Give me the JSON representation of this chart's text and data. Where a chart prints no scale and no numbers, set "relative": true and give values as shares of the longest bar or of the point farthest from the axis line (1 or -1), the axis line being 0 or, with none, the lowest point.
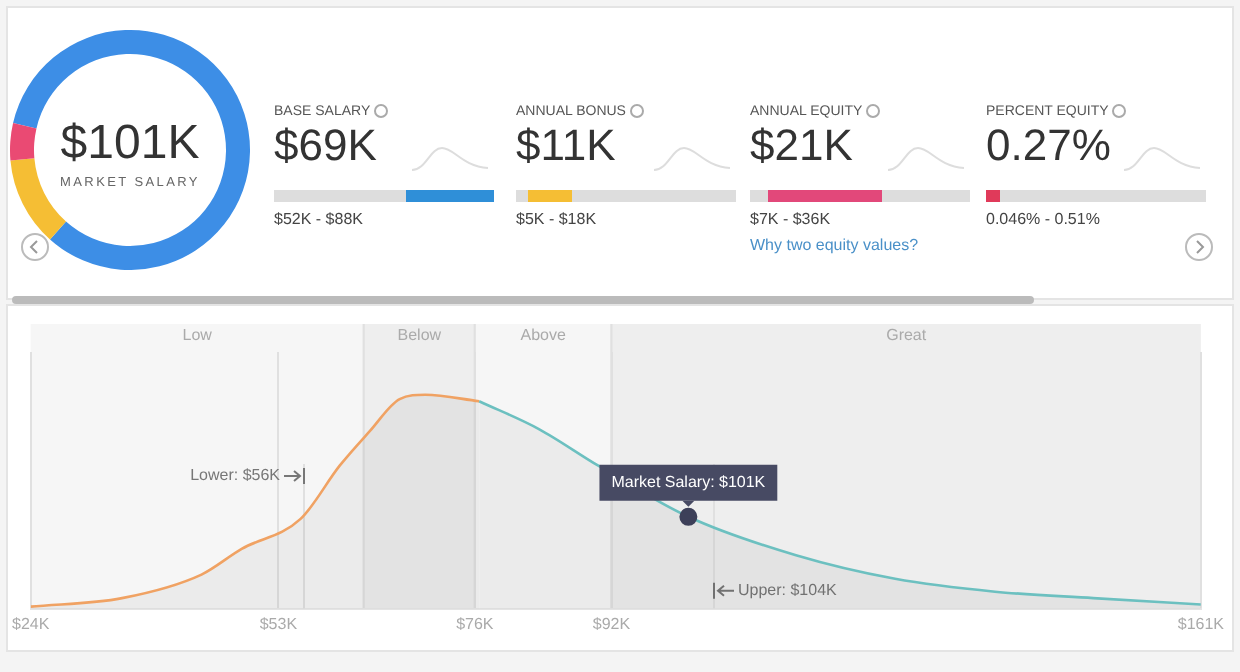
{
  "chart_data": [
    {
      "type": "donut",
      "categories": [
        null,
        null,
        null
      ],
      "values": [
        83,
        12,
        5
      ],
      "colors": [
        "#3d8ee6",
        "#f5be34",
        "#ea4a73"
      ],
      "annotations": [
        "$101K",
        "MARKET SALARY"
      ],
      "legend": false
    },
    {
      "type": "other",
      "title": "BASE SALARY",
      "annotations": [
        "$69K",
        "$52K - $88K"
      ],
      "color": "#2f8fd8"
    },
    {
      "type": "other",
      "title": "ANNUAL BONUS",
      "annotations": [
        "$11K",
        "$5K - $18K"
      ],
      "color": "#f5be34"
    },
    {
      "type": "other",
      "title": "ANNUAL EQUITY",
      "annotations": [
        "$21K",
        "$7K - $36K",
        "Why two equity values?"
      ],
      "color": "#e2487a"
    },
    {
      "type": "other",
      "title": "PERCENT EQUITY",
      "annotations": [
        "0.27%",
        "0.046% - 0.51%"
      ],
      "color": "#e03a5a"
    },
    {
      "type": "area",
      "relative": true,
      "xlim": [
        24,
        161
      ],
      "xticks": [
        {
          "value": 24,
          "label": "$24K"
        },
        {
          "value": 53,
          "label": "$53K"
        },
        {
          "value": 76,
          "label": "$76K"
        },
        {
          "value": 92,
          "label": "$92K"
        },
        {
          "value": 161,
          "label": "$161K"
        }
      ],
      "series": [
        {
          "color": "#f0a263",
          "x": [
            24,
            34.7,
            44,
            48.7,
            55.6,
            60.2,
            63.7,
            67.2,
            70.2,
            76.5
          ],
          "values": [
            0.01,
            0.05,
            0.16,
            0.28,
            0.42,
            0.67,
            0.83,
            0.98,
            1,
            0.97
          ]
        },
        {
          "color": "#6cc0c0",
          "x": [
            76.5,
            83.5,
            90.4,
            101,
            113.6,
            125.2,
            136.9,
            148.4,
            161
          ],
          "values": [
            0.97,
            0.84,
            0.67,
            0.43,
            0.25,
            0.14,
            0.08,
            0.05,
            0.02
          ]
        },
        {
          "type": "scatter",
          "color": "#3d4059",
          "x": [
            101
          ],
          "values": [
            0.43
          ],
          "marker": "circle"
        }
      ],
      "bands": [
        {
          "axis": "x",
          "from": 24,
          "to": 63,
          "label": "Low",
          "color": "#f6f6f6"
        },
        {
          "axis": "x",
          "from": 63,
          "to": 76,
          "label": "Below",
          "color": "#eeeeee"
        },
        {
          "axis": "x",
          "from": 76,
          "to": 92,
          "label": "Above",
          "color": "#f6f6f6"
        },
        {
          "axis": "x",
          "from": 92,
          "to": 161,
          "label": "Great",
          "color": "#eeeeee"
        }
      ],
      "ref_lines": [
        {
          "axis": "x",
          "value": 56,
          "label": "Lower: $56K"
        },
        {
          "axis": "x",
          "value": 104,
          "label": "Upper: $104K"
        }
      ],
      "annotations": [
        {
          "text": "Market Salary: $101K",
          "x": 101,
          "y": 0.43
        }
      ],
      "grid": "x",
      "legend": false
    }
  ]
}
